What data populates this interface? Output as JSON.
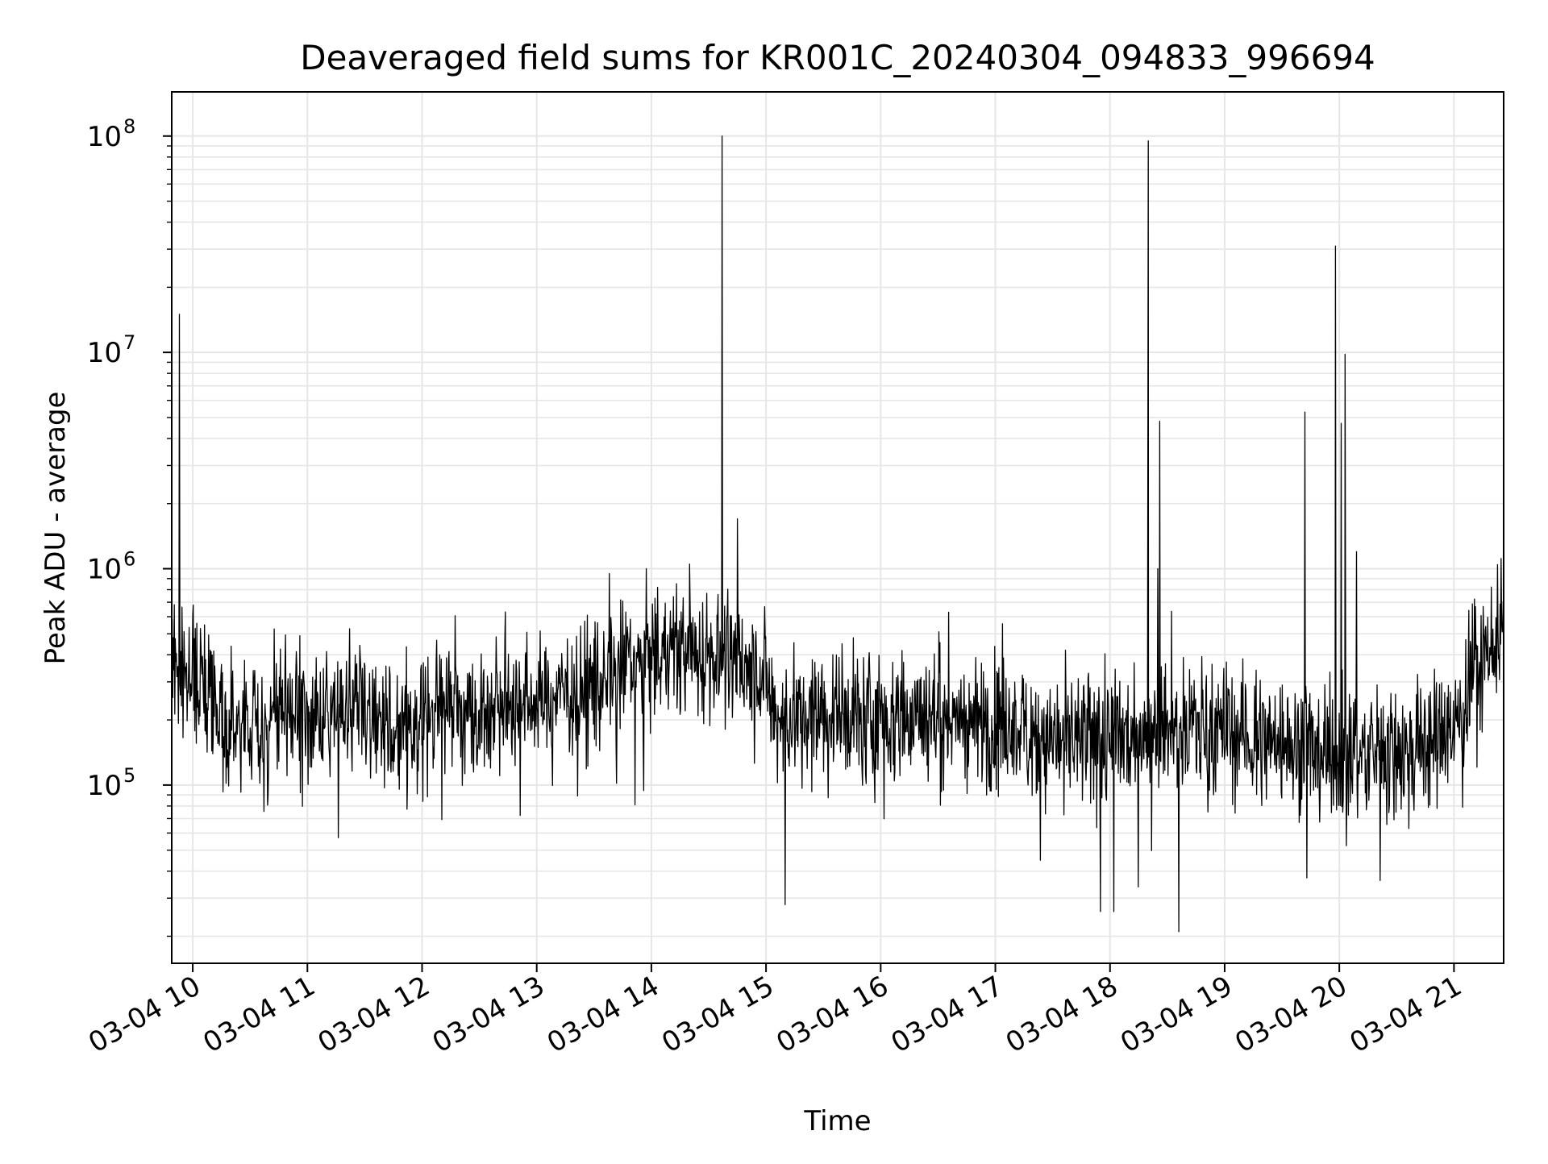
{
  "chart_data": {
    "type": "line",
    "title": "Deaveraged field sums for KR001C_20240304_094833_996694",
    "xlabel": "Time",
    "ylabel": "Peak ADU - average",
    "x_axis": {
      "kind": "time",
      "start": "03-04 09:49",
      "end": "03-04 21:26",
      "tick_labels": [
        "03-04 10",
        "03-04 11",
        "03-04 12",
        "03-04 13",
        "03-04 14",
        "03-04 15",
        "03-04 16",
        "03-04 17",
        "03-04 18",
        "03-04 19",
        "03-04 20",
        "03-04 21"
      ]
    },
    "y_axis": {
      "scale": "log",
      "ylim": [
        15000,
        160000000
      ],
      "tick_labels": [
        {
          "value": 100000,
          "base": "10",
          "exp": "5"
        },
        {
          "value": 1000000,
          "base": "10",
          "exp": "6"
        },
        {
          "value": 10000000,
          "base": "10",
          "exp": "7"
        },
        {
          "value": 100000000,
          "base": "10",
          "exp": "8"
        }
      ]
    },
    "grid": true,
    "line_color": "#000000",
    "grid_color": "#e6e6e6",
    "series": [
      {
        "baseline": [
          {
            "x": "03-04 09:49",
            "y": 350000
          },
          {
            "x": "03-04 10:10",
            "y": 300000
          },
          {
            "x": "03-04 10:20",
            "y": 180000
          },
          {
            "x": "03-04 10:40",
            "y": 200000
          },
          {
            "x": "03-04 11:00",
            "y": 210000
          },
          {
            "x": "03-04 11:30",
            "y": 240000
          },
          {
            "x": "03-04 11:50",
            "y": 160000
          },
          {
            "x": "03-04 12:10",
            "y": 250000
          },
          {
            "x": "03-04 12:30",
            "y": 220000
          },
          {
            "x": "03-04 13:00",
            "y": 250000
          },
          {
            "x": "03-04 13:30",
            "y": 300000
          },
          {
            "x": "03-04 14:00",
            "y": 380000
          },
          {
            "x": "03-04 14:30",
            "y": 420000
          },
          {
            "x": "03-04 14:55",
            "y": 360000
          },
          {
            "x": "03-04 15:05",
            "y": 200000
          },
          {
            "x": "03-04 15:30",
            "y": 210000
          },
          {
            "x": "03-04 16:00",
            "y": 200000
          },
          {
            "x": "03-04 16:30",
            "y": 210000
          },
          {
            "x": "03-04 17:00",
            "y": 190000
          },
          {
            "x": "03-04 17:30",
            "y": 170000
          },
          {
            "x": "03-04 17:55",
            "y": 150000
          },
          {
            "x": "03-04 18:30",
            "y": 200000
          },
          {
            "x": "03-04 19:00",
            "y": 180000
          },
          {
            "x": "03-04 19:30",
            "y": 160000
          },
          {
            "x": "03-04 20:00",
            "y": 140000
          },
          {
            "x": "03-04 20:30",
            "y": 140000
          },
          {
            "x": "03-04 20:50",
            "y": 160000
          },
          {
            "x": "03-04 21:00",
            "y": 180000
          },
          {
            "x": "03-04 21:15",
            "y": 400000
          },
          {
            "x": "03-04 21:26",
            "y": 520000
          }
        ],
        "spikes": [
          {
            "x": "03-04 09:53",
            "y": 15000000
          },
          {
            "x": "03-04 14:37",
            "y": 100000000
          },
          {
            "x": "03-04 14:45",
            "y": 1700000
          },
          {
            "x": "03-04 14:20",
            "y": 1050000
          },
          {
            "x": "03-04 13:38",
            "y": 950000
          },
          {
            "x": "03-04 18:20",
            "y": 95000000
          },
          {
            "x": "03-04 18:26",
            "y": 4800000
          },
          {
            "x": "03-04 18:25",
            "y": 1000000
          },
          {
            "x": "03-04 19:42",
            "y": 5300000
          },
          {
            "x": "03-04 19:58",
            "y": 31000000
          },
          {
            "x": "03-04 20:01",
            "y": 4700000
          },
          {
            "x": "03-04 20:03",
            "y": 9800000
          },
          {
            "x": "03-04 20:09",
            "y": 1200000
          }
        ],
        "dips": [
          {
            "x": "03-04 15:10",
            "y": 28000
          },
          {
            "x": "03-04 17:55",
            "y": 26000
          },
          {
            "x": "03-04 18:36",
            "y": 21000
          },
          {
            "x": "03-04 18:02",
            "y": 26000
          }
        ]
      }
    ]
  }
}
